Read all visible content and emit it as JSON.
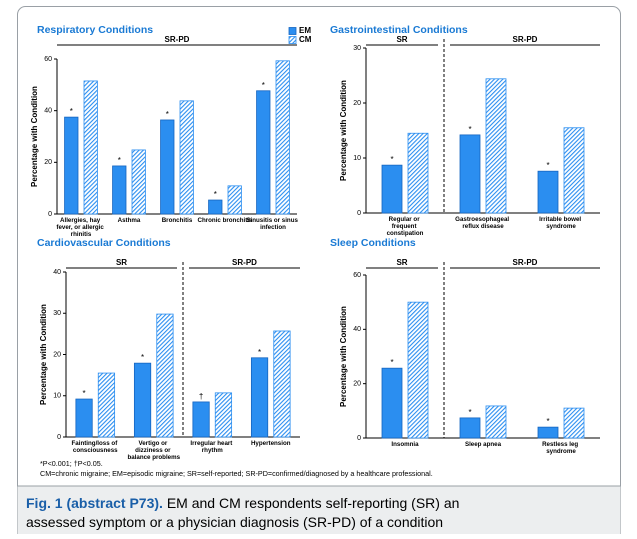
{
  "chart_data": [
    {
      "type": "bar",
      "title": "Respiratory Conditions",
      "ylabel": "Percentage with Condition",
      "categories": [
        "Allergies, hay fever, or allergic rhinitis",
        "Asthma",
        "Bronchitis",
        "Chronic bronchitis",
        "Sinusitis or sinus infection"
      ],
      "category_groups": [
        "SR-PD",
        "SR-PD",
        "SR-PD",
        "SR-PD",
        "SR-PD"
      ],
      "significance": [
        "*",
        "*",
        "*",
        "*",
        "*"
      ],
      "series": [
        {
          "name": "EM",
          "color": "#2b8ef0",
          "hatch": false,
          "values": [
            37.5,
            18.6,
            36.4,
            5.4,
            47.7
          ]
        },
        {
          "name": "CM",
          "color": "#2b8ef0",
          "hatch": true,
          "values": [
            51.5,
            24.8,
            43.8,
            10.9,
            59.3
          ]
        }
      ],
      "ylim": [
        0,
        60
      ],
      "yticks": [
        0,
        20,
        40,
        60
      ],
      "legend": "upper-right"
    },
    {
      "type": "bar",
      "title": "Gastrointestinal Conditions",
      "ylabel": "Percentage with Condition",
      "categories": [
        "Regular or frequent constipation",
        "Gastroesophageal reflux disease",
        "Irritable bowel syndrome"
      ],
      "category_groups": [
        "SR",
        "SR-PD",
        "SR-PD"
      ],
      "significance": [
        "*",
        "*",
        "*"
      ],
      "series": [
        {
          "name": "EM",
          "color": "#2b8ef0",
          "hatch": false,
          "values": [
            8.7,
            14.2,
            7.6
          ]
        },
        {
          "name": "CM",
          "color": "#2b8ef0",
          "hatch": true,
          "values": [
            14.5,
            24.4,
            15.5
          ]
        }
      ],
      "ylim": [
        0,
        30
      ],
      "yticks": [
        0,
        10,
        20,
        30
      ]
    },
    {
      "type": "bar",
      "title": "Cardiovascular Conditions",
      "ylabel": "Percentage with Condition",
      "categories": [
        "Fainting/loss of consciousness",
        "Vertigo or dizziness or balance problems",
        "Irregular heart rhythm",
        "Hypertension"
      ],
      "category_groups": [
        "SR",
        "SR",
        "SR-PD",
        "SR-PD"
      ],
      "significance": [
        "*",
        "*",
        "†",
        "*"
      ],
      "series": [
        {
          "name": "EM",
          "color": "#2b8ef0",
          "hatch": false,
          "values": [
            9.2,
            17.9,
            8.5,
            19.2
          ]
        },
        {
          "name": "CM",
          "color": "#2b8ef0",
          "hatch": true,
          "values": [
            15.5,
            29.8,
            10.7,
            25.7
          ]
        }
      ],
      "ylim": [
        0,
        40
      ],
      "yticks": [
        0,
        10,
        20,
        30,
        40
      ]
    },
    {
      "type": "bar",
      "title": "Sleep Conditions",
      "ylabel": "Percentage with Condition",
      "categories": [
        "Insomnia",
        "Sleep apnea",
        "Restless leg syndrome"
      ],
      "category_groups": [
        "SR",
        "SR-PD",
        "SR-PD"
      ],
      "significance": [
        "*",
        "*",
        "*"
      ],
      "series": [
        {
          "name": "EM",
          "color": "#2b8ef0",
          "hatch": false,
          "values": [
            25.7,
            7.4,
            4.0
          ]
        },
        {
          "name": "CM",
          "color": "#2b8ef0",
          "hatch": true,
          "values": [
            50,
            11.8,
            11
          ]
        }
      ],
      "ylim": [
        0,
        60
      ],
      "yticks": [
        0,
        20,
        40,
        60
      ]
    }
  ],
  "footnotes": [
    "*P<0.001; †P<0.05.",
    "CM=chronic migraine; EM=episodic migraine; SR=self-reported; SR-PD=confirmed/diagnosed by a healthcare professional."
  ],
  "caption": {
    "label": "Fig. 1 (abstract P73).",
    "lines": [
      "EM and CM respondents self-reporting (SR) an",
      "assessed symptom or a physician diagnosis (SR-PD) of a condition"
    ]
  }
}
